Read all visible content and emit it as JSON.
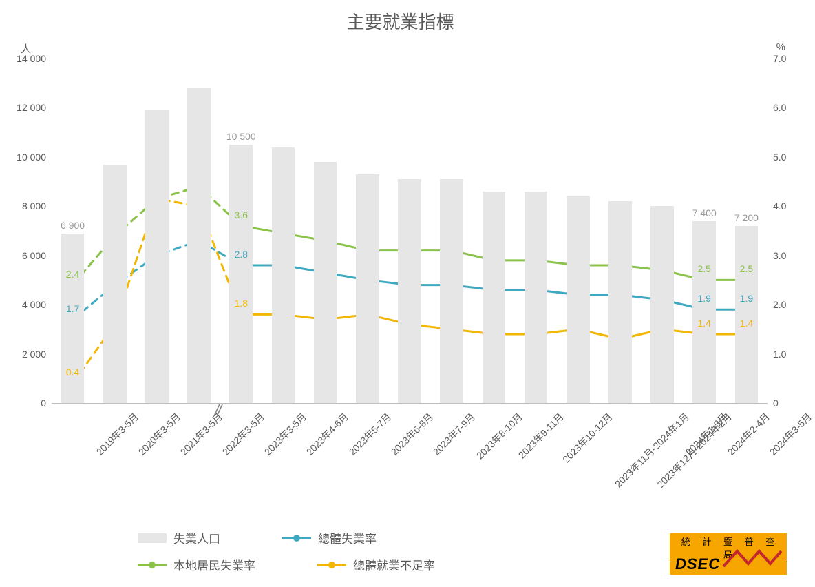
{
  "chart": {
    "title": "主要就業指標",
    "y_left_label": "人",
    "y_right_label": "%",
    "y_left": {
      "min": 0,
      "max": 14000,
      "step": 2000,
      "ticks": [
        "0",
        "2 000",
        "4 000",
        "6 000",
        "8 000",
        "10 000",
        "12 000",
        "14 000"
      ]
    },
    "y_right": {
      "min": 0,
      "max": 7.0,
      "step": 1.0,
      "ticks": [
        "0",
        "1.0",
        "2.0",
        "3.0",
        "4.0",
        "5.0",
        "6.0",
        "7.0"
      ]
    },
    "categories": [
      "2019年3-5月",
      "2020年3-5月",
      "2021年3-5月",
      "2022年3-5月",
      "2023年3-5月",
      "2023年4-6月",
      "2023年5-7月",
      "2023年6-8月",
      "2023年7-9月",
      "2023年8-10月",
      "2023年9-11月",
      "2023年10-12月",
      "2023年11月-2024年1月",
      "2023年12月-2024年2月",
      "2024年1-3月",
      "2024年2-4月",
      "2024年3-5月"
    ],
    "break_after_index": 3,
    "series_bar": {
      "name": "失業人口",
      "color": "#e6e6e6",
      "values": [
        6900,
        9700,
        11900,
        12800,
        10500,
        10400,
        9800,
        9300,
        9100,
        9100,
        8600,
        8600,
        8400,
        8200,
        8000,
        7400,
        7200
      ],
      "labels": {
        "0": "6 900",
        "4": "10 500",
        "15": "7 400",
        "16": "7 200"
      },
      "label_color": "#999999"
    },
    "series_lines": [
      {
        "name": "總體失業率",
        "color": "#3fa9c1",
        "values": [
          1.7,
          2.4,
          3.0,
          3.3,
          2.8,
          2.8,
          2.65,
          2.5,
          2.4,
          2.4,
          2.3,
          2.3,
          2.2,
          2.2,
          2.1,
          1.9,
          1.9
        ],
        "labels": {
          "0": "1.7",
          "4": "2.8",
          "15": "1.9",
          "16": "1.9"
        },
        "marker_at": [
          0,
          4,
          15,
          16
        ],
        "dashed_segments": [
          [
            0,
            4
          ]
        ]
      },
      {
        "name": "本地居民失業率",
        "color": "#8bc34a",
        "values": [
          2.4,
          3.4,
          4.15,
          4.4,
          3.6,
          3.45,
          3.3,
          3.1,
          3.1,
          3.1,
          2.9,
          2.9,
          2.8,
          2.8,
          2.7,
          2.5,
          2.5
        ],
        "labels": {
          "0": "2.4",
          "4": "3.6",
          "15": "2.5",
          "16": "2.5"
        },
        "marker_at": [
          0,
          4,
          15,
          16
        ],
        "dashed_segments": [
          [
            0,
            4
          ]
        ]
      },
      {
        "name": "總體就業不足率",
        "color": "#f2b705",
        "values": [
          0.4,
          1.6,
          4.15,
          4.0,
          1.8,
          1.8,
          1.7,
          1.8,
          1.6,
          1.5,
          1.4,
          1.4,
          1.5,
          1.3,
          1.5,
          1.4,
          1.4
        ],
        "labels": {
          "0": "0.4",
          "4": "1.8",
          "15": "1.4",
          "16": "1.4"
        },
        "marker_at": [
          0,
          4,
          15,
          16
        ],
        "dashed_segments": [
          [
            0,
            4
          ]
        ]
      }
    ],
    "line_width": 3,
    "marker_radius": 5.5,
    "bar_width_ratio": 0.55,
    "background": "#ffffff",
    "grid_color": "#d9d9d9"
  },
  "legend": {
    "items": [
      {
        "type": "bar",
        "key": "series_bar",
        "label": "失業人口"
      },
      {
        "type": "line",
        "series": 0,
        "label": "總體失業率"
      },
      {
        "type": "line",
        "series": 1,
        "label": "本地居民失業率"
      },
      {
        "type": "line",
        "series": 2,
        "label": "總體就業不足率"
      }
    ]
  },
  "logo": {
    "top_text": "統 計 暨 普 查 局",
    "main_text": "DSEC",
    "bg": "#f7a600",
    "zig_color": "#c1272d"
  }
}
